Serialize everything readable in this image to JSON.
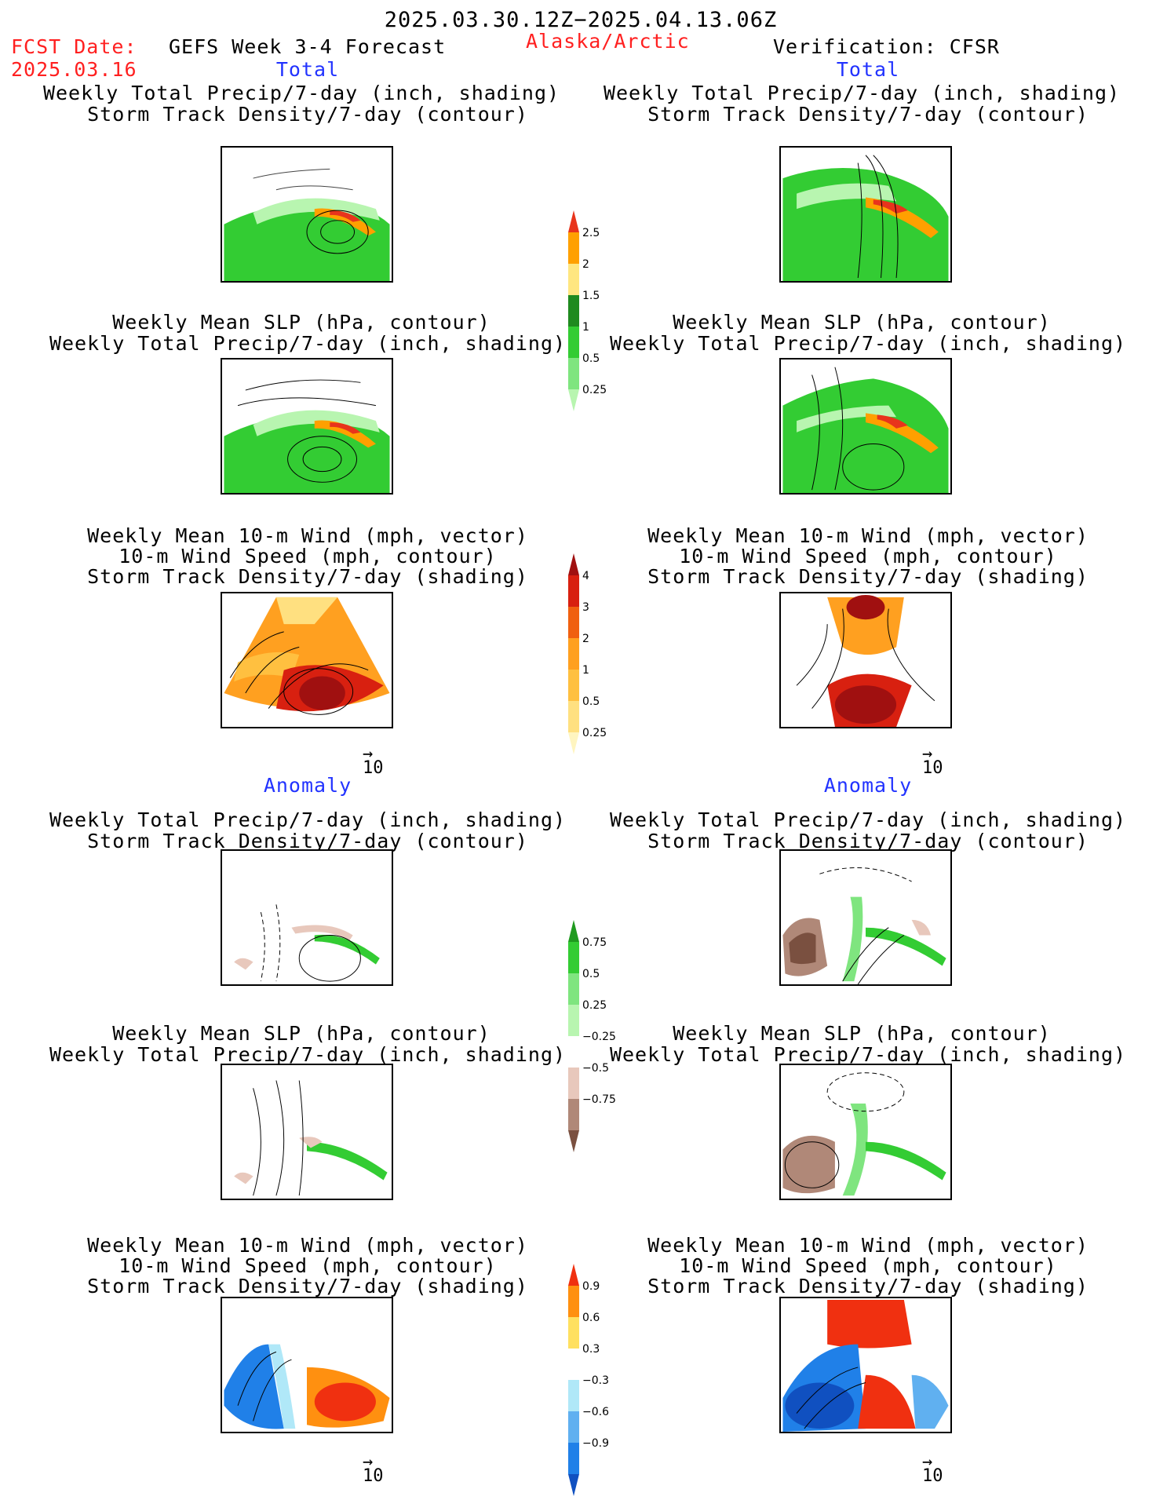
{
  "header": {
    "period": "2025.03.30.12Z−2025.04.13.06Z",
    "fcst_label": "FCST Date:",
    "fcst_date": "2025.03.16",
    "product": "GEFS Week 3-4 Forecast",
    "region": "Alaska/Arctic",
    "verification": "Verification: CFSR"
  },
  "sections": {
    "total": "Total",
    "anomaly": "Anomaly"
  },
  "panel_titles": {
    "precip": [
      "Weekly Total Precip/7-day (inch, shading)",
      "Storm Track Density/7-day (contour)"
    ],
    "slp": [
      "Weekly Mean SLP (hPa, contour)",
      "Weekly Total Precip/7-day (inch, shading)"
    ],
    "wind": [
      "Weekly Mean 10-m Wind (mph, vector)",
      "10-m Wind Speed (mph, contour)",
      "Storm Track Density/7-day (shading)"
    ]
  },
  "vector_ref": "10",
  "colorbars": {
    "total_precip": {
      "labels": [
        "2.5",
        "2",
        "1.5",
        "1",
        "0.5",
        "0.25"
      ],
      "colors": [
        "#e8341c",
        "#ffa000",
        "#ffe680",
        "#1f8a1f",
        "#33cc33",
        "#7fe57f",
        "#b8f5b0"
      ]
    },
    "total_storm": {
      "labels": [
        "4",
        "3",
        "2",
        "1",
        "0.5",
        "0.25"
      ],
      "colors": [
        "#a01010",
        "#d82010",
        "#f06010",
        "#ffa020",
        "#ffc040",
        "#ffe080",
        "#fff5c0"
      ]
    },
    "anom_precip": {
      "labels": [
        "0.75",
        "0.5",
        "0.25",
        "−0.25",
        "−0.5",
        "−0.75"
      ],
      "colors": [
        "#1f9a1f",
        "#33cc33",
        "#7fe57f",
        "#b8f5b0",
        "#ffffff",
        "#e8c8bc",
        "#b08878",
        "#7a5040"
      ]
    },
    "anom_storm": {
      "labels": [
        "0.9",
        "0.6",
        "0.3",
        "−0.3",
        "−0.6",
        "−0.9"
      ],
      "colors": [
        "#f03010",
        "#ff9010",
        "#ffe060",
        "#ffffff",
        "#b0e8f8",
        "#60b0f0",
        "#2080e8",
        "#1050c0"
      ]
    }
  }
}
